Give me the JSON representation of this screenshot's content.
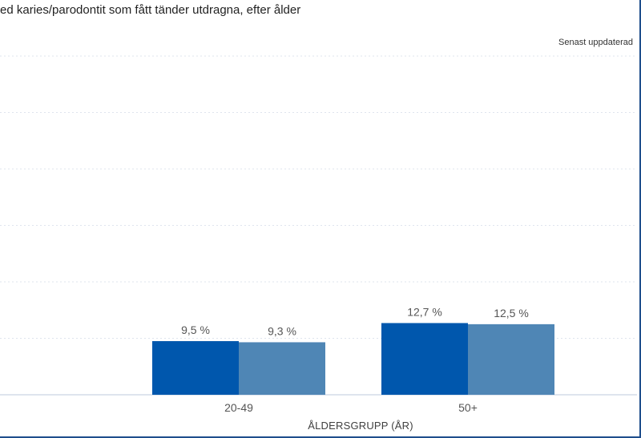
{
  "title": "ed karies/parodontit som fått tänder utdragna, efter ålder",
  "updated_note": "Senast uppdaterad",
  "chart_data": {
    "type": "bar",
    "categories": [
      "20-49",
      "50+"
    ],
    "series": [
      {
        "values": [
          9.5,
          12.7
        ],
        "data_labels": [
          "9,5 %",
          "12,7 %"
        ]
      },
      {
        "values": [
          9.3,
          12.5
        ],
        "data_labels": [
          "9,3 %",
          "12,5 %"
        ]
      }
    ],
    "xlabel": "ÅLDERSGRUPP (ÅR)",
    "ylabel": "",
    "ylim": [
      0,
      60
    ],
    "grid": true,
    "colors": [
      "#0057ad",
      "#4f86b5"
    ],
    "gridline_color": "#dfe4ee",
    "axis_color": "#c9d3e3",
    "label_color": "#555555"
  }
}
